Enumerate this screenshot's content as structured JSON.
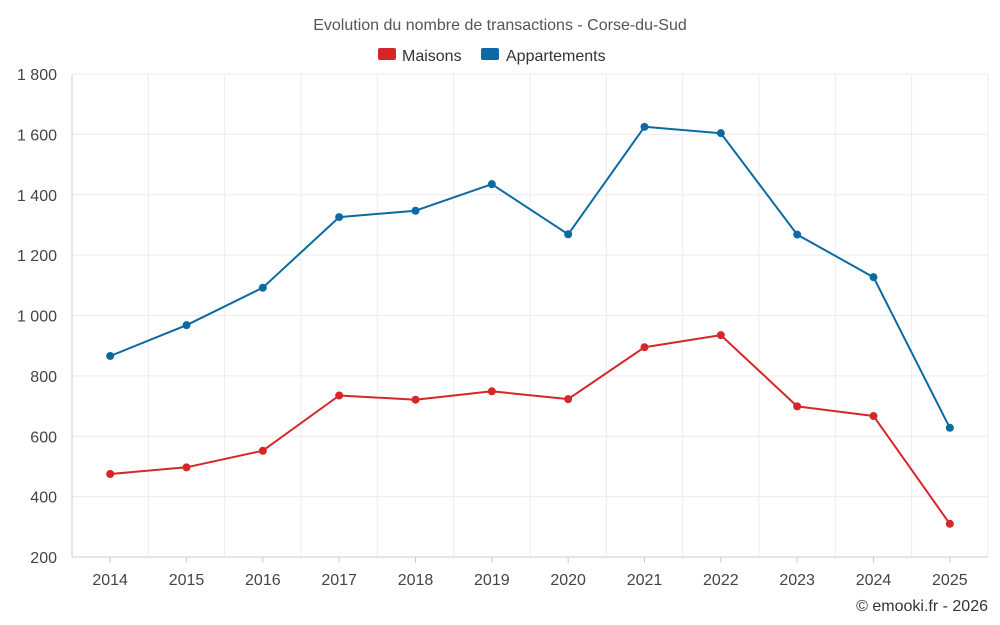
{
  "chart_data": {
    "type": "line",
    "title": "Evolution du nombre de transactions - Corse-du-Sud",
    "categories": [
      "2014",
      "2015",
      "2016",
      "2017",
      "2018",
      "2019",
      "2020",
      "2021",
      "2022",
      "2023",
      "2024",
      "2025"
    ],
    "series": [
      {
        "name": "Maisons",
        "color": "#d62728",
        "values": [
          475,
          497,
          552,
          735,
          721,
          749,
          723,
          895,
          935,
          699,
          667,
          310
        ]
      },
      {
        "name": "Appartements",
        "color": "#0b6aa2",
        "values": [
          866,
          968,
          1092,
          1326,
          1347,
          1435,
          1269,
          1625,
          1604,
          1268,
          1127,
          628
        ]
      }
    ],
    "ylim": [
      200,
      1800
    ],
    "yticks": [
      200,
      400,
      600,
      800,
      1000,
      1200,
      1400,
      1600,
      1800
    ],
    "ytick_labels": [
      "200",
      "400",
      "600",
      "800",
      "1 000",
      "1 200",
      "1 400",
      "1 600",
      "1 800"
    ],
    "grid": true,
    "legend_position": "top-center",
    "credit": "© emooki.fr - 2026"
  }
}
